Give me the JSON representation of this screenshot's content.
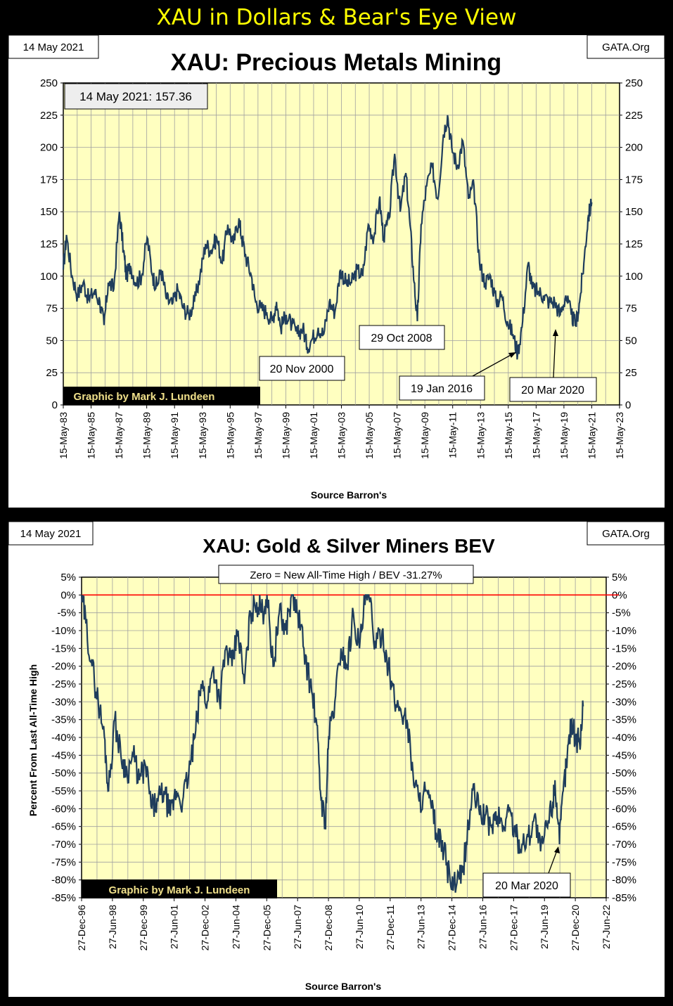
{
  "header": {
    "title": "XAU in Dollars & Bear's Eye View"
  },
  "colors": {
    "plot_bg": "#ffffc0",
    "series": "#1f3d5c",
    "grid": "#a0a0a0",
    "zero_line": "#ff0000",
    "header_text": "#ffff00",
    "credit_bg": "#000000",
    "credit_text": "#f0e08a"
  },
  "chart_data": [
    {
      "type": "line",
      "title": "XAU: Precious Metals Mining",
      "date_box": "14 May 2021",
      "source_box": "GATA.Org",
      "value_box": "14 May 2021:  157.36",
      "credit": "Graphic by Mark J. Lundeen",
      "xlabel": "Source Barron's",
      "ylabel": "",
      "ylim": [
        0,
        250
      ],
      "xlim": [
        1983.37,
        2023.37
      ],
      "yticks": [
        "0",
        "25",
        "50",
        "75",
        "100",
        "125",
        "150",
        "175",
        "200",
        "225",
        "250"
      ],
      "xticks": [
        "15-May-83",
        "15-May-85",
        "15-May-87",
        "15-May-89",
        "15-May-91",
        "15-May-93",
        "15-May-95",
        "15-May-97",
        "15-May-99",
        "15-May-01",
        "15-May-03",
        "15-May-05",
        "15-May-07",
        "15-May-09",
        "15-May-11",
        "15-May-13",
        "15-May-15",
        "15-May-17",
        "15-May-19",
        "15-May-21",
        "15-May-23"
      ],
      "series": [
        {
          "name": "XAU",
          "x": [
            1983.37,
            1983.6,
            1984.0,
            1984.4,
            1984.8,
            1985.2,
            1985.6,
            1986.0,
            1986.3,
            1986.6,
            1987.0,
            1987.4,
            1987.7,
            1987.9,
            1988.2,
            1988.6,
            1989.0,
            1989.4,
            1989.8,
            1990.1,
            1990.4,
            1990.8,
            1991.2,
            1991.6,
            1992.0,
            1992.4,
            1992.8,
            1993.2,
            1993.6,
            1994.0,
            1994.4,
            1994.8,
            1995.2,
            1995.6,
            1996.0,
            1996.2,
            1996.5,
            1996.9,
            1997.2,
            1997.6,
            1998.0,
            1998.4,
            1998.7,
            1999.0,
            1999.4,
            1999.8,
            2000.2,
            2000.6,
            2000.9,
            2001.3,
            2001.7,
            2002.1,
            2002.5,
            2002.9,
            2003.3,
            2003.7,
            2004.1,
            2004.5,
            2004.9,
            2005.3,
            2005.7,
            2006.1,
            2006.4,
            2006.8,
            2007.2,
            2007.6,
            2008.0,
            2008.3,
            2008.6,
            2008.83,
            2009.1,
            2009.5,
            2009.9,
            2010.3,
            2010.7,
            2011.0,
            2011.3,
            2011.7,
            2012.1,
            2012.5,
            2012.9,
            2013.3,
            2013.7,
            2014.1,
            2014.5,
            2014.9,
            2015.3,
            2015.7,
            2016.05,
            2016.4,
            2016.8,
            2017.1,
            2017.5,
            2017.9,
            2018.3,
            2018.7,
            2019.1,
            2019.5,
            2019.9,
            2020.22,
            2020.5,
            2020.8,
            2021.1,
            2021.37
          ],
          "values": [
            105,
            132,
            100,
            85,
            95,
            82,
            88,
            80,
            62,
            95,
            90,
            150,
            120,
            100,
            108,
            95,
            100,
            130,
            100,
            92,
            105,
            82,
            78,
            90,
            75,
            70,
            80,
            100,
            125,
            120,
            130,
            110,
            140,
            125,
            145,
            130,
            115,
            100,
            80,
            75,
            72,
            65,
            80,
            60,
            70,
            62,
            55,
            60,
            45,
            52,
            60,
            55,
            80,
            72,
            105,
            95,
            95,
            105,
            100,
            140,
            130,
            160,
            130,
            145,
            195,
            150,
            180,
            140,
            95,
            65,
            140,
            170,
            185,
            160,
            210,
            225,
            200,
            185,
            205,
            160,
            170,
            110,
            95,
            100,
            80,
            85,
            65,
            55,
            40,
            65,
            110,
            90,
            88,
            85,
            80,
            80,
            70,
            85,
            70,
            62,
            80,
            110,
            145,
            157.36
          ]
        }
      ]
    },
    {
      "type": "line",
      "title": "XAU: Gold & Silver Miners BEV",
      "date_box": "14 May 2021",
      "source_box": "GATA.Org",
      "value_box": "Zero = New All-Time High / BEV -31.27%",
      "credit": "Graphic by Mark J. Lundeen",
      "annotation": "20 Mar 2020",
      "xlabel": "Source Barron's",
      "ylabel": "Percent  From  Last  All-Time  High",
      "ylim": [
        -85,
        5
      ],
      "xlim": [
        1996.99,
        2022.49
      ],
      "yticks": [
        "-85%",
        "-80%",
        "-75%",
        "-70%",
        "-65%",
        "-60%",
        "-55%",
        "-50%",
        "-45%",
        "-40%",
        "-35%",
        "-30%",
        "-25%",
        "-20%",
        "-15%",
        "-10%",
        "-5%",
        "0%",
        "5%"
      ],
      "xticks": [
        "27-Dec-96",
        "27-Jun-98",
        "27-Dec-99",
        "27-Jun-01",
        "27-Dec-02",
        "27-Jun-04",
        "27-Dec-05",
        "27-Jun-07",
        "27-Dec-08",
        "27-Jun-10",
        "27-Dec-11",
        "27-Jun-13",
        "27-Dec-14",
        "27-Jun-16",
        "27-Dec-17",
        "27-Jun-19",
        "27-Dec-20",
        "27-Jun-22"
      ],
      "series": [
        {
          "name": "BEV",
          "x": [
            1996.99,
            1997.2,
            1997.5,
            1997.8,
            1998.1,
            1998.3,
            1998.6,
            1998.9,
            1999.2,
            1999.5,
            1999.8,
            2000.1,
            2000.4,
            2000.7,
            2001.0,
            2001.3,
            2001.6,
            2001.9,
            2002.2,
            2002.5,
            2002.8,
            2003.1,
            2003.4,
            2003.7,
            2004.0,
            2004.3,
            2004.6,
            2004.9,
            2005.2,
            2005.5,
            2005.8,
            2006.0,
            2006.3,
            2006.6,
            2006.9,
            2007.2,
            2007.5,
            2007.8,
            2008.1,
            2008.4,
            2008.6,
            2008.83,
            2009.0,
            2009.3,
            2009.6,
            2009.9,
            2010.2,
            2010.5,
            2010.8,
            2011.0,
            2011.3,
            2011.6,
            2011.9,
            2012.2,
            2012.5,
            2012.8,
            2013.1,
            2013.4,
            2013.7,
            2014.0,
            2014.3,
            2014.6,
            2014.9,
            2015.2,
            2015.5,
            2015.8,
            2016.0,
            2016.3,
            2016.6,
            2016.9,
            2017.2,
            2017.5,
            2017.8,
            2018.1,
            2018.4,
            2018.7,
            2019.0,
            2019.3,
            2019.6,
            2019.9,
            2020.0,
            2020.22,
            2020.4,
            2020.6,
            2020.8,
            2021.0,
            2021.2,
            2021.37
          ],
          "values": [
            0,
            -8,
            -20,
            -30,
            -40,
            -55,
            -35,
            -45,
            -50,
            -45,
            -52,
            -48,
            -60,
            -58,
            -55,
            -62,
            -55,
            -58,
            -50,
            -40,
            -25,
            -30,
            -20,
            -30,
            -15,
            -20,
            -10,
            -25,
            -5,
            -2,
            -5,
            0,
            -20,
            -5,
            -10,
            0,
            -5,
            -15,
            -25,
            -35,
            -55,
            -65,
            -40,
            -30,
            -15,
            -20,
            -5,
            -15,
            0,
            -2,
            -15,
            -10,
            -20,
            -30,
            -32,
            -35,
            -50,
            -58,
            -55,
            -60,
            -68,
            -72,
            -80,
            -82,
            -78,
            -65,
            -55,
            -60,
            -62,
            -65,
            -62,
            -65,
            -60,
            -68,
            -70,
            -68,
            -62,
            -72,
            -65,
            -58,
            -52,
            -70,
            -55,
            -45,
            -35,
            -40,
            -42,
            -31.27
          ]
        }
      ]
    }
  ],
  "annotations1": [
    "20 Nov 2000",
    "29 Oct 2008",
    "19 Jan 2016",
    "20 Mar 2020"
  ]
}
